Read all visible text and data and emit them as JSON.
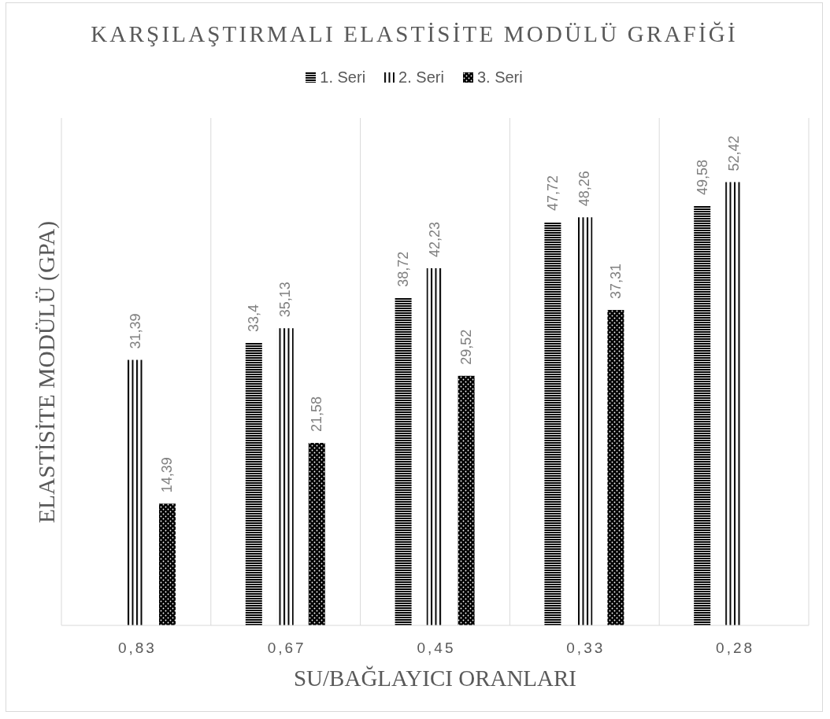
{
  "chart_data": {
    "type": "bar",
    "title": "KARŞILAŞTIRMALI ELASTİSİTE MODÜLÜ GRAFİĞİ",
    "xlabel": "SU/BAĞLAYICI ORANLARI",
    "ylabel": "ELASTİSİTE MODÜLÜ (GPA)",
    "categories": [
      "0,83",
      "0,67",
      "0,45",
      "0,33",
      "0,28"
    ],
    "series": [
      {
        "name": "1. Seri",
        "color": "#000000",
        "values": [
          null,
          33.4,
          38.72,
          47.72,
          49.58
        ],
        "value_labels": [
          null,
          "33,4",
          "38,72",
          "47,72",
          "49,58"
        ]
      },
      {
        "name": "2. Seri",
        "color": "#000000",
        "values": [
          31.39,
          35.13,
          42.23,
          48.26,
          52.42
        ],
        "value_labels": [
          "31,39",
          "35,13",
          "42,23",
          "48,26",
          "52,42"
        ]
      },
      {
        "name": "3. Seri",
        "color": "#000000",
        "values": [
          14.39,
          21.58,
          29.52,
          37.31,
          null
        ],
        "value_labels": [
          "14,39",
          "21,58",
          "29,52",
          "37,31",
          null
        ]
      }
    ],
    "legend": "top",
    "grid": "x",
    "tick_labels": "x"
  }
}
